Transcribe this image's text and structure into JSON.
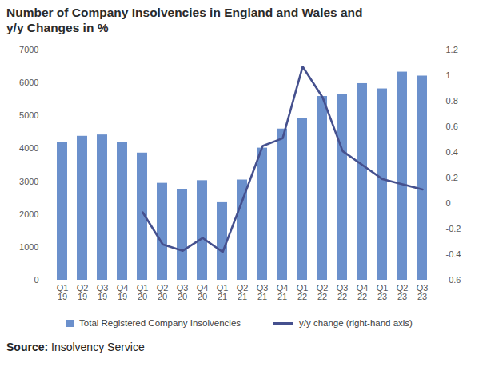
{
  "chart_data": {
    "type": "bar",
    "title": "Number of Company Insolvencies in England and Wales and y/y Changes in %",
    "categories": [
      "Q1 19",
      "Q2 19",
      "Q3 19",
      "Q4 19",
      "Q1 20",
      "Q2 20",
      "Q3 20",
      "Q4 20",
      "Q1 21",
      "Q2 21",
      "Q3 21",
      "Q4 21",
      "Q1 22",
      "Q2 22",
      "Q3 22",
      "Q4 22",
      "Q1 23",
      "Q2 23",
      "Q3 23"
    ],
    "series": [
      {
        "name": "Total Registered Company Insolvencies",
        "type": "bar",
        "color": "#6b90cc",
        "values": [
          4200,
          4380,
          4420,
          4200,
          3870,
          2950,
          2750,
          3030,
          2360,
          3050,
          4020,
          4600,
          4930,
          5590,
          5650,
          5980,
          5820,
          6330,
          6210
        ]
      },
      {
        "name": "y/y change (right-hand axis)",
        "type": "line",
        "axis": "y2",
        "color": "#45508e",
        "values": [
          null,
          null,
          null,
          null,
          -0.07,
          -0.32,
          -0.37,
          -0.27,
          -0.38,
          0.03,
          0.45,
          0.51,
          1.07,
          0.83,
          0.41,
          0.3,
          0.19,
          0.15,
          0.11
        ]
      }
    ],
    "ylim": [
      0,
      7000
    ],
    "yticks": [
      0,
      1000,
      2000,
      3000,
      4000,
      5000,
      6000,
      7000
    ],
    "y2lim": [
      -0.6,
      1.2
    ],
    "y2ticks": [
      -0.6,
      -0.4,
      -0.2,
      0,
      0.2,
      0.4,
      0.6,
      0.8,
      1,
      1.2
    ],
    "grid": false,
    "legend": "bottom",
    "source": "Source: Insolvency Service"
  }
}
